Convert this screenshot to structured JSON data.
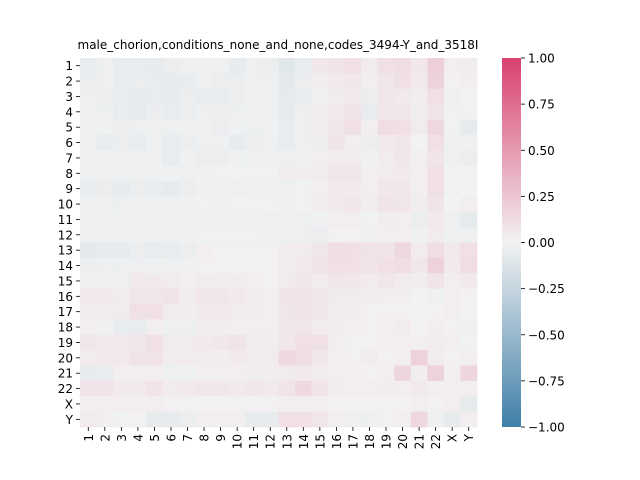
{
  "chart_data": {
    "type": "heatmap",
    "title": "male_chorion,conditions_none_and_none,codes_3494-Y_and_3518I",
    "xlabel": "",
    "ylabel": "",
    "rows": [
      "1",
      "2",
      "3",
      "4",
      "5",
      "6",
      "7",
      "8",
      "9",
      "10",
      "11",
      "12",
      "13",
      "14",
      "15",
      "16",
      "17",
      "18",
      "19",
      "20",
      "21",
      "22",
      "X",
      "Y"
    ],
    "cols": [
      "1",
      "2",
      "3",
      "4",
      "5",
      "6",
      "7",
      "8",
      "9",
      "10",
      "11",
      "12",
      "13",
      "14",
      "15",
      "16",
      "17",
      "18",
      "19",
      "20",
      "21",
      "22",
      "X",
      "Y"
    ],
    "zlim": [
      -1,
      1
    ],
    "colorbar_ticks": [
      "1.00",
      "0.75",
      "0.50",
      "0.25",
      "0.00",
      "−0.25",
      "−0.50",
      "−0.75",
      "−1.00"
    ],
    "colorbar_tick_values": [
      1.0,
      0.75,
      0.5,
      0.25,
      0.0,
      -0.25,
      -0.5,
      -0.75,
      -1.0
    ],
    "colormap": {
      "negative": "#3f7fa8",
      "center": "#f2f2f2",
      "positive": "#d9416f"
    },
    "values": [
      [
        -0.05,
        -0.03,
        -0.05,
        -0.05,
        -0.06,
        -0.04,
        -0.03,
        -0.02,
        -0.03,
        -0.06,
        -0.03,
        -0.04,
        -0.1,
        -0.05,
        0.06,
        0.08,
        0.1,
        0.04,
        0.1,
        0.12,
        0.06,
        0.2,
        0.02,
        0.03
      ],
      [
        -0.04,
        -0.03,
        -0.05,
        -0.04,
        -0.05,
        -0.06,
        -0.05,
        -0.03,
        -0.04,
        -0.04,
        -0.03,
        -0.03,
        -0.08,
        -0.04,
        0.03,
        0.05,
        0.06,
        0.02,
        0.07,
        0.1,
        0.05,
        0.18,
        0.01,
        0.02
      ],
      [
        -0.03,
        -0.04,
        -0.05,
        -0.06,
        -0.05,
        -0.06,
        -0.04,
        -0.05,
        -0.05,
        -0.04,
        -0.03,
        -0.02,
        -0.07,
        -0.05,
        -0.03,
        0.04,
        0.05,
        -0.04,
        0.06,
        0.05,
        0.03,
        0.1,
        -0.02,
        0.0
      ],
      [
        -0.02,
        -0.03,
        -0.05,
        -0.07,
        -0.04,
        -0.05,
        -0.04,
        -0.03,
        -0.03,
        -0.03,
        -0.02,
        -0.02,
        -0.06,
        -0.03,
        0.03,
        0.05,
        0.08,
        -0.05,
        0.06,
        0.06,
        0.03,
        0.08,
        -0.01,
        0.01
      ],
      [
        -0.02,
        -0.02,
        -0.04,
        -0.03,
        -0.02,
        -0.03,
        -0.02,
        -0.03,
        -0.04,
        -0.02,
        -0.03,
        -0.02,
        -0.05,
        -0.03,
        0.04,
        0.06,
        0.1,
        0.02,
        0.12,
        0.1,
        0.04,
        0.15,
        -0.01,
        -0.06
      ],
      [
        -0.02,
        -0.05,
        -0.04,
        -0.05,
        -0.03,
        -0.05,
        -0.04,
        -0.03,
        -0.03,
        -0.06,
        -0.04,
        -0.03,
        -0.05,
        -0.03,
        -0.04,
        0.08,
        0.02,
        -0.04,
        0.05,
        0.06,
        0.0,
        0.1,
        -0.02,
        -0.02
      ],
      [
        -0.02,
        -0.02,
        -0.03,
        -0.03,
        -0.02,
        -0.05,
        -0.02,
        -0.04,
        -0.04,
        -0.02,
        -0.03,
        -0.03,
        -0.03,
        -0.02,
        0.02,
        0.04,
        0.04,
        -0.02,
        0.04,
        0.06,
        0.02,
        0.08,
        -0.03,
        -0.04
      ],
      [
        -0.03,
        -0.02,
        -0.03,
        -0.02,
        -0.02,
        -0.02,
        -0.03,
        -0.02,
        -0.01,
        -0.01,
        -0.01,
        -0.01,
        0.03,
        0.03,
        0.04,
        0.06,
        0.06,
        0.02,
        0.04,
        0.05,
        0.02,
        0.1,
        -0.01,
        0.0
      ],
      [
        -0.05,
        -0.04,
        -0.06,
        -0.04,
        -0.05,
        -0.07,
        -0.04,
        -0.02,
        -0.02,
        -0.03,
        -0.02,
        -0.02,
        -0.03,
        -0.01,
        0.02,
        0.05,
        0.05,
        0.02,
        0.06,
        0.06,
        0.02,
        0.1,
        -0.01,
        0.0
      ],
      [
        -0.02,
        -0.03,
        -0.03,
        -0.02,
        -0.02,
        -0.03,
        -0.02,
        -0.01,
        -0.02,
        -0.01,
        -0.01,
        -0.01,
        -0.02,
        -0.01,
        0.03,
        0.05,
        0.06,
        0.03,
        0.08,
        0.07,
        0.03,
        0.08,
        0.0,
        0.02
      ],
      [
        -0.03,
        -0.02,
        -0.03,
        -0.02,
        -0.02,
        -0.02,
        -0.02,
        -0.02,
        -0.02,
        -0.02,
        -0.02,
        -0.03,
        -0.03,
        -0.03,
        -0.02,
        0.02,
        0.02,
        -0.01,
        0.03,
        0.02,
        -0.04,
        0.05,
        -0.03,
        -0.07
      ],
      [
        -0.03,
        -0.02,
        -0.02,
        -0.02,
        -0.02,
        -0.03,
        -0.02,
        -0.01,
        -0.01,
        -0.01,
        -0.01,
        -0.03,
        -0.03,
        -0.03,
        -0.04,
        0.01,
        0.01,
        -0.02,
        0.02,
        0.02,
        -0.02,
        0.04,
        -0.03,
        -0.03
      ],
      [
        -0.08,
        -0.06,
        -0.06,
        -0.04,
        -0.05,
        -0.05,
        -0.04,
        0.02,
        0.01,
        0.01,
        0.01,
        0.01,
        0.03,
        0.04,
        0.06,
        0.12,
        0.1,
        0.09,
        0.08,
        0.15,
        0.04,
        0.12,
        0.05,
        0.1
      ],
      [
        -0.04,
        -0.03,
        -0.03,
        -0.03,
        -0.02,
        -0.03,
        -0.02,
        0.01,
        0.01,
        0.0,
        0.01,
        0.01,
        0.03,
        0.05,
        0.08,
        0.1,
        0.1,
        0.08,
        0.1,
        0.12,
        0.06,
        0.18,
        0.05,
        0.12
      ],
      [
        -0.02,
        -0.02,
        -0.03,
        0.05,
        0.05,
        0.04,
        0.02,
        0.04,
        0.03,
        0.03,
        0.02,
        0.01,
        0.04,
        0.06,
        0.04,
        0.07,
        0.06,
        0.04,
        0.06,
        0.04,
        0.03,
        0.08,
        0.02,
        0.05
      ],
      [
        0.05,
        0.05,
        0.04,
        0.06,
        0.06,
        0.08,
        0.03,
        0.06,
        0.06,
        0.05,
        0.03,
        0.02,
        0.08,
        0.09,
        0.07,
        0.04,
        0.04,
        0.03,
        0.02,
        0.02,
        0.0,
        -0.02,
        0.02,
        0.01
      ],
      [
        0.04,
        0.04,
        0.04,
        0.1,
        0.1,
        0.04,
        0.03,
        0.05,
        0.05,
        0.04,
        0.03,
        0.02,
        0.07,
        0.08,
        0.07,
        0.03,
        0.03,
        0.01,
        0.01,
        0.01,
        0.0,
        0.01,
        0.02,
        0.0
      ],
      [
        0.02,
        -0.02,
        -0.05,
        -0.05,
        0.02,
        -0.03,
        -0.03,
        0.03,
        0.03,
        0.02,
        0.02,
        0.02,
        0.06,
        0.07,
        0.04,
        0.03,
        0.02,
        0.01,
        0.02,
        0.04,
        0.0,
        0.02,
        0.01,
        -0.02
      ],
      [
        0.06,
        0.05,
        0.05,
        0.06,
        0.1,
        0.04,
        0.04,
        0.05,
        0.06,
        0.08,
        0.04,
        0.03,
        0.06,
        0.1,
        0.1,
        0.02,
        -0.01,
        0.01,
        0.02,
        0.02,
        0.02,
        0.03,
        0.02,
        -0.01
      ],
      [
        0.04,
        0.05,
        0.05,
        0.08,
        0.09,
        0.03,
        0.04,
        0.03,
        0.03,
        0.05,
        0.04,
        0.04,
        0.14,
        0.12,
        0.06,
        0.02,
        0.01,
        0.03,
        0.01,
        0.02,
        0.18,
        0.04,
        0.01,
        0.02
      ],
      [
        -0.06,
        -0.05,
        0.02,
        0.02,
        0.02,
        -0.03,
        -0.02,
        0.02,
        0.02,
        0.02,
        0.03,
        0.03,
        0.04,
        0.05,
        0.04,
        0.02,
        0.02,
        0.01,
        0.02,
        0.16,
        0.03,
        0.18,
        0.02,
        0.16
      ],
      [
        0.08,
        0.08,
        0.05,
        0.05,
        0.08,
        0.04,
        0.05,
        0.06,
        0.06,
        0.05,
        0.06,
        0.05,
        0.08,
        0.14,
        0.08,
        0.03,
        0.02,
        0.02,
        0.03,
        0.02,
        0.05,
        0.02,
        0.02,
        0.02
      ],
      [
        0.02,
        0.02,
        0.02,
        0.02,
        0.02,
        0.01,
        0.01,
        0.01,
        0.01,
        0.01,
        0.01,
        0.01,
        0.02,
        0.02,
        0.02,
        0.01,
        0.01,
        0.01,
        0.01,
        0.01,
        0.02,
        0.01,
        0.02,
        -0.06
      ],
      [
        0.04,
        0.02,
        -0.01,
        0.01,
        -0.06,
        -0.06,
        -0.04,
        0.02,
        0.02,
        0.02,
        -0.06,
        -0.06,
        0.1,
        0.1,
        0.07,
        0.02,
        -0.03,
        -0.03,
        0.01,
        0.02,
        0.15,
        -0.02,
        -0.06,
        0.02
      ]
    ]
  }
}
